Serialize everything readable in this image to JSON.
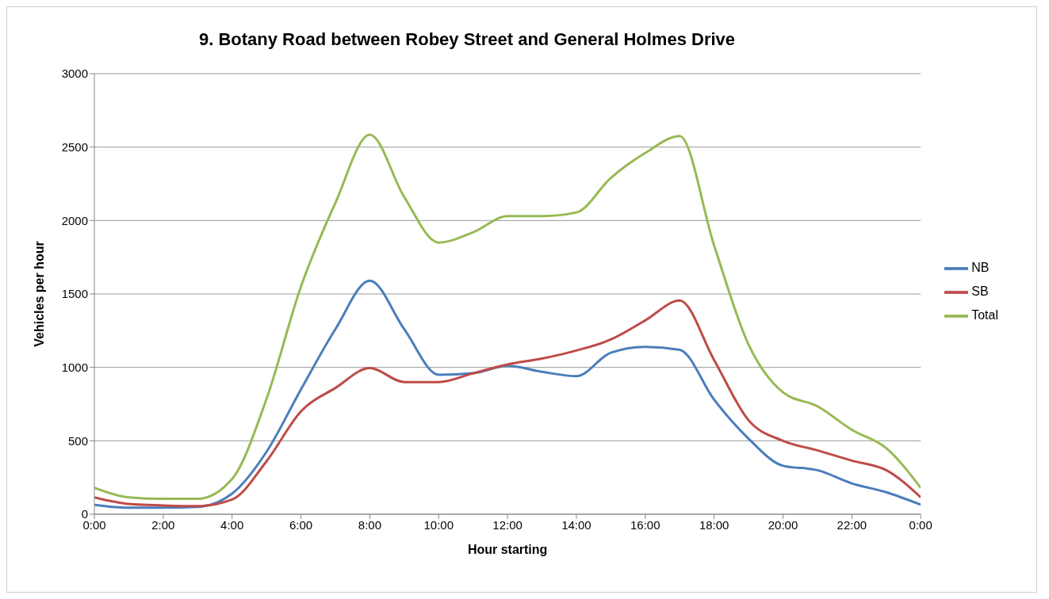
{
  "chart_data": {
    "type": "line",
    "title": "9. Botany Road between Robey Street and General Holmes Drive",
    "xlabel": "Hour starting",
    "ylabel": "Vehicles per hour",
    "x": [
      0,
      1,
      2,
      3,
      4,
      5,
      6,
      7,
      8,
      9,
      10,
      11,
      12,
      13,
      14,
      15,
      16,
      17,
      18,
      19,
      20,
      21,
      22,
      23,
      24
    ],
    "series": [
      {
        "name": "NB",
        "color": "#4a7ebb",
        "values": [
          64,
          45,
          45,
          50,
          140,
          425,
          850,
          1260,
          1590,
          1260,
          950,
          960,
          1010,
          970,
          940,
          1100,
          1140,
          1120,
          780,
          515,
          330,
          300,
          210,
          150,
          65
        ]
      },
      {
        "name": "SB",
        "color": "#be4b48",
        "values": [
          115,
          70,
          60,
          55,
          100,
          360,
          700,
          860,
          995,
          900,
          900,
          960,
          1020,
          1060,
          1115,
          1190,
          1320,
          1455,
          1050,
          640,
          500,
          435,
          365,
          300,
          115
        ]
      },
      {
        "name": "Total",
        "color": "#98b954",
        "values": [
          180,
          115,
          105,
          105,
          240,
          785,
          1550,
          2120,
          2585,
          2160,
          1850,
          1920,
          2030,
          2030,
          2055,
          2290,
          2460,
          2575,
          1830,
          1155,
          830,
          735,
          575,
          450,
          180
        ]
      }
    ],
    "xlim": [
      0,
      24
    ],
    "xticks": [
      {
        "value": 0,
        "label": "0:00"
      },
      {
        "value": 2,
        "label": "2:00"
      },
      {
        "value": 4,
        "label": "4:00"
      },
      {
        "value": 6,
        "label": "6:00"
      },
      {
        "value": 8,
        "label": "8:00"
      },
      {
        "value": 10,
        "label": "10:00"
      },
      {
        "value": 12,
        "label": "12:00"
      },
      {
        "value": 14,
        "label": "14:00"
      },
      {
        "value": 16,
        "label": "16:00"
      },
      {
        "value": 18,
        "label": "18:00"
      },
      {
        "value": 20,
        "label": "20:00"
      },
      {
        "value": 22,
        "label": "22:00"
      },
      {
        "value": 24,
        "label": "0:00"
      }
    ],
    "ylim": [
      0,
      3000
    ],
    "yticks": [
      0,
      500,
      1000,
      1500,
      2000,
      2500,
      3000
    ],
    "grid": "y",
    "legend": "right",
    "marker": "none",
    "line_style": "solid"
  }
}
